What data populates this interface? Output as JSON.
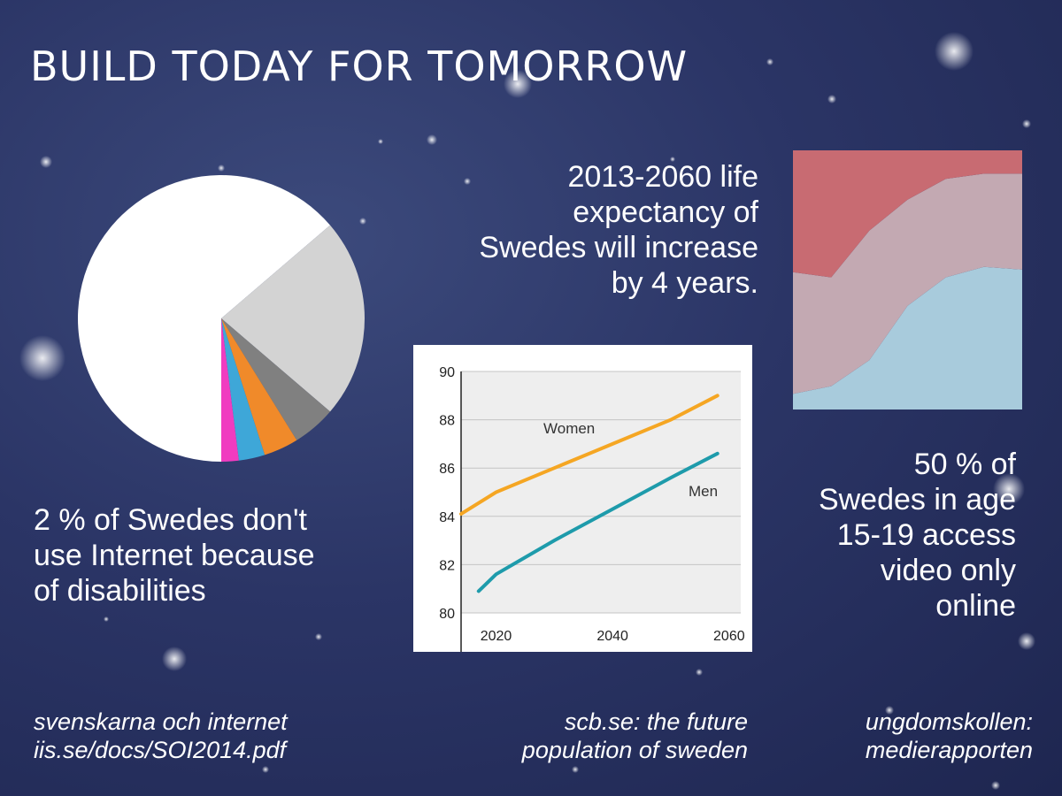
{
  "title": "BUILD TODAY FOR TOMORROW",
  "stats": {
    "disability": [
      "2 % of Swedes don't",
      "use Internet because",
      "of disabilities"
    ],
    "life_expectancy": [
      "2013-2060 life",
      "expectancy of",
      "Swedes will increase",
      "by 4 years."
    ],
    "video": [
      "50 % of",
      "Swedes in age",
      "15-19 access",
      "video only",
      "online"
    ]
  },
  "sources": {
    "left": [
      "svenskarna och internet",
      "iis.se/docs/SOI2014.pdf"
    ],
    "middle": [
      "scb.se: the future",
      "population of sweden"
    ],
    "right": [
      "ungdomskollen:",
      "medierapporten"
    ]
  },
  "colors": {
    "pie": [
      "#ffffff",
      "#d3d3d3",
      "#808080",
      "#f08a2a",
      "#3ea7d8",
      "#f03cc0"
    ],
    "women": "#f5a623",
    "men": "#1e9bab",
    "area_top": "#c86b72",
    "area_mid": "#c3a9b2",
    "area_bottom": "#a8cbdc"
  },
  "chart_data": [
    {
      "type": "pie",
      "values": [
        65,
        23,
        5,
        4,
        3,
        2
      ]
    },
    {
      "type": "line",
      "ylim": [
        80,
        90
      ],
      "xlim": [
        2014,
        2062
      ],
      "x_ticks": [
        "2020",
        "2040",
        "2060"
      ],
      "y_ticks": [
        "80",
        "82",
        "84",
        "86",
        "88",
        "90"
      ],
      "grid": true,
      "series": [
        {
          "name": "Women",
          "x": [
            2014,
            2020,
            2030,
            2040,
            2050,
            2058
          ],
          "y": [
            84.1,
            85.0,
            86.0,
            87.0,
            88.0,
            89.0
          ]
        },
        {
          "name": "Men",
          "x": [
            2017,
            2020,
            2030,
            2040,
            2050,
            2058
          ],
          "y": [
            80.9,
            81.6,
            83.0,
            84.3,
            85.6,
            86.6
          ]
        }
      ]
    },
    {
      "type": "area",
      "x": [
        1,
        2,
        3,
        4,
        5,
        6,
        7
      ],
      "ylim": [
        0,
        100
      ],
      "grid": false,
      "series": [
        {
          "values": [
            6,
            9,
            19,
            40,
            51,
            55,
            54
          ]
        },
        {
          "values": [
            47,
            42,
            50,
            41,
            38,
            36,
            37
          ]
        },
        {
          "values": [
            47,
            49,
            31,
            19,
            11,
            9,
            9
          ]
        }
      ]
    }
  ]
}
